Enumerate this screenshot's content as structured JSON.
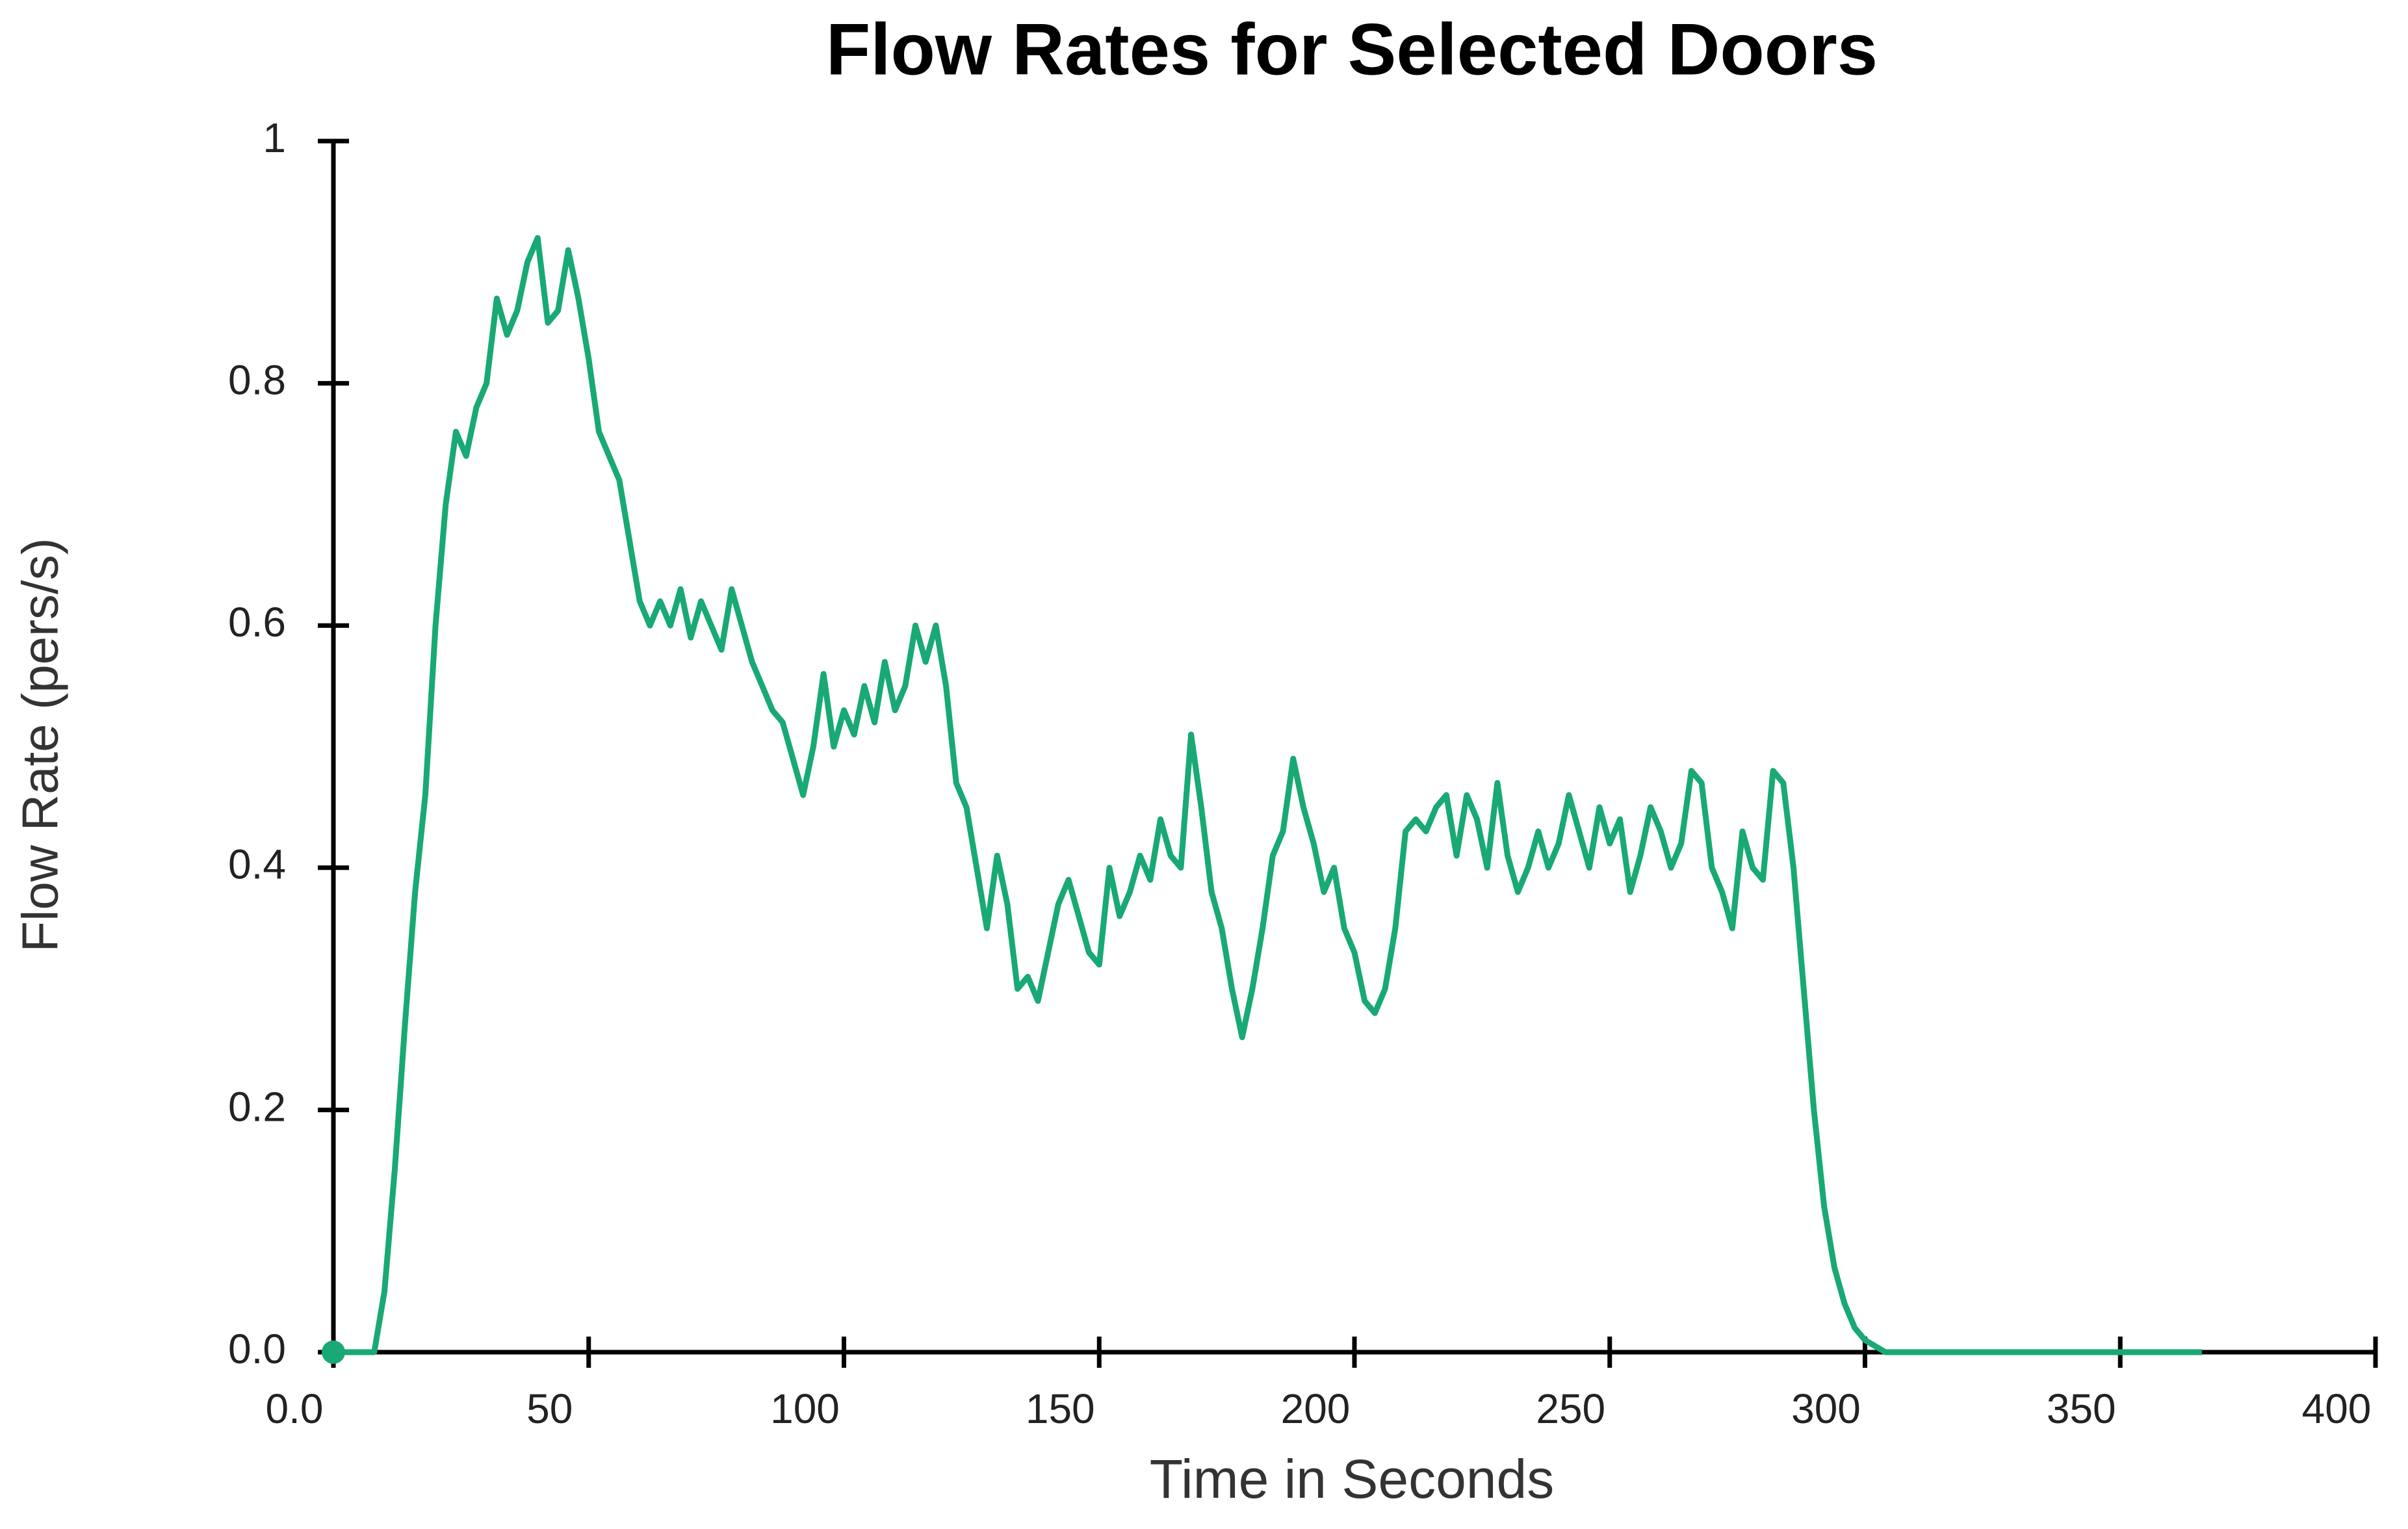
{
  "chart_data": {
    "type": "line",
    "title": "Flow Rates for Selected Doors",
    "x_label": "Time in Seconds",
    "y_label": "Flow Rate (pers/s)",
    "xlim": [
      0,
      400
    ],
    "ylim": [
      0,
      1
    ],
    "xticks": [
      {
        "value": 0,
        "label": "0.0"
      },
      50,
      100,
      150,
      200,
      250,
      300,
      350,
      400
    ],
    "yticks": [
      {
        "value": 0,
        "label": "0.0"
      },
      0.2,
      0.4,
      0.6,
      0.8,
      1
    ],
    "x": [
      0,
      8,
      10,
      12,
      14,
      16,
      18,
      20,
      22,
      24,
      26,
      28,
      30,
      32,
      34,
      36,
      38,
      40,
      42,
      44,
      46,
      48,
      50,
      52,
      54,
      56,
      58,
      60,
      62,
      64,
      66,
      68,
      70,
      72,
      74,
      76,
      78,
      80,
      82,
      84,
      86,
      88,
      90,
      92,
      94,
      96,
      98,
      100,
      102,
      104,
      106,
      108,
      110,
      112,
      114,
      116,
      118,
      120,
      122,
      124,
      126,
      128,
      130,
      132,
      134,
      136,
      138,
      140,
      142,
      144,
      146,
      148,
      150,
      152,
      154,
      156,
      158,
      160,
      162,
      164,
      166,
      168,
      170,
      172,
      174,
      176,
      178,
      180,
      182,
      184,
      186,
      188,
      190,
      192,
      194,
      196,
      198,
      200,
      202,
      204,
      206,
      208,
      210,
      212,
      214,
      216,
      218,
      220,
      222,
      224,
      226,
      228,
      230,
      232,
      234,
      236,
      238,
      240,
      242,
      244,
      246,
      248,
      250,
      252,
      254,
      256,
      258,
      260,
      262,
      264,
      266,
      268,
      270,
      272,
      274,
      276,
      278,
      280,
      282,
      284,
      286,
      288,
      290,
      292,
      294,
      296,
      298,
      300,
      304,
      366
    ],
    "series": [
      {
        "name": "Flow Rate",
        "color": "#19a974",
        "values": [
          0,
          0,
          0.05,
          0.15,
          0.27,
          0.38,
          0.46,
          0.6,
          0.7,
          0.76,
          0.74,
          0.78,
          0.8,
          0.87,
          0.84,
          0.86,
          0.9,
          0.92,
          0.85,
          0.86,
          0.91,
          0.87,
          0.82,
          0.76,
          0.74,
          0.72,
          0.67,
          0.62,
          0.6,
          0.62,
          0.6,
          0.63,
          0.59,
          0.62,
          0.6,
          0.58,
          0.63,
          0.6,
          0.57,
          0.55,
          0.53,
          0.52,
          0.49,
          0.46,
          0.5,
          0.56,
          0.5,
          0.53,
          0.51,
          0.55,
          0.52,
          0.57,
          0.53,
          0.55,
          0.6,
          0.57,
          0.6,
          0.55,
          0.47,
          0.45,
          0.4,
          0.35,
          0.41,
          0.37,
          0.3,
          0.31,
          0.29,
          0.33,
          0.37,
          0.39,
          0.36,
          0.33,
          0.32,
          0.4,
          0.36,
          0.38,
          0.41,
          0.39,
          0.44,
          0.41,
          0.4,
          0.51,
          0.45,
          0.38,
          0.35,
          0.3,
          0.26,
          0.3,
          0.35,
          0.41,
          0.43,
          0.49,
          0.45,
          0.42,
          0.38,
          0.4,
          0.35,
          0.33,
          0.29,
          0.28,
          0.3,
          0.35,
          0.43,
          0.44,
          0.43,
          0.45,
          0.46,
          0.41,
          0.46,
          0.44,
          0.4,
          0.47,
          0.41,
          0.38,
          0.4,
          0.43,
          0.4,
          0.42,
          0.46,
          0.43,
          0.4,
          0.45,
          0.42,
          0.44,
          0.38,
          0.41,
          0.45,
          0.43,
          0.4,
          0.42,
          0.48,
          0.47,
          0.4,
          0.38,
          0.35,
          0.43,
          0.4,
          0.39,
          0.48,
          0.47,
          0.4,
          0.3,
          0.2,
          0.12,
          0.07,
          0.04,
          0.02,
          0.01,
          0,
          0
        ]
      }
    ]
  }
}
